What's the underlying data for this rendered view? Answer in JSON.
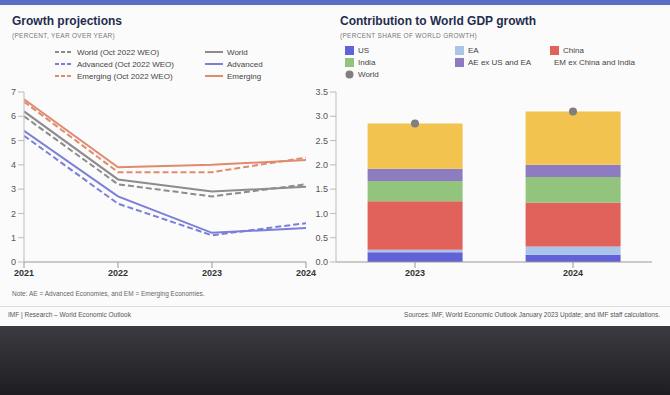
{
  "chart_data": [
    {
      "type": "line",
      "title": "Growth projections",
      "subtitle": "(PERCENT, YEAR OVER YEAR)",
      "x": [
        2021,
        2022,
        2023,
        2024
      ],
      "xlim": [
        2021,
        2024
      ],
      "xticks": [
        2021,
        2022,
        2023,
        2024
      ],
      "ylim": [
        0,
        7
      ],
      "yticks": [
        0,
        1,
        2,
        3,
        4,
        5,
        6,
        7
      ],
      "grid": false,
      "series": [
        {
          "name": "World (Oct 2022 WEO)",
          "color": "#8c8c8c",
          "line_style": "dashed",
          "values": [
            6.0,
            3.2,
            2.7,
            3.2
          ]
        },
        {
          "name": "Advanced (Oct 2022 WEO)",
          "color": "#7b7fd6",
          "line_style": "dashed",
          "values": [
            5.2,
            2.4,
            1.1,
            1.6
          ]
        },
        {
          "name": "Emerging (Oct 2022 WEO)",
          "color": "#e08a6e",
          "line_style": "dashed",
          "values": [
            6.6,
            3.7,
            3.7,
            4.3
          ]
        },
        {
          "name": "World",
          "color": "#8c8c8c",
          "line_style": "solid",
          "values": [
            6.2,
            3.4,
            2.9,
            3.1
          ]
        },
        {
          "name": "Advanced",
          "color": "#7b7fd6",
          "line_style": "solid",
          "values": [
            5.4,
            2.7,
            1.2,
            1.4
          ]
        },
        {
          "name": "Emerging",
          "color": "#e08a6e",
          "line_style": "solid",
          "values": [
            6.7,
            3.9,
            4.0,
            4.2
          ]
        }
      ],
      "note": "Note: AE = Advanced Economies, and EM = Emerging Economies.",
      "footer": "IMF | Research – World Economic Outlook"
    },
    {
      "type": "bar",
      "stacked": true,
      "title": "Contribution to World GDP growth",
      "subtitle": "(PERCENT SHARE OF WORLD GROWTH)",
      "categories": [
        "2023",
        "2024"
      ],
      "ylim": [
        0,
        3.5
      ],
      "yticks": [
        {
          "value": 0,
          "label": "0.0"
        },
        0.5,
        {
          "value": 1,
          "label": "1.0"
        },
        1.5,
        {
          "value": 2,
          "label": "2.0"
        },
        2.5,
        {
          "value": 3,
          "label": "3.0"
        },
        3.5
      ],
      "grid": false,
      "series": [
        {
          "name": "US",
          "color": "#6262d8",
          "values": [
            0.2,
            0.15
          ]
        },
        {
          "name": "EA",
          "color": "#a9c6ea",
          "values": [
            0.05,
            0.17
          ]
        },
        {
          "name": "China",
          "color": "#e0625a",
          "values": [
            1.0,
            0.9
          ]
        },
        {
          "name": "India",
          "color": "#93c47d",
          "values": [
            0.42,
            0.53
          ]
        },
        {
          "name": "AE ex US and EA",
          "color": "#8e7cc3",
          "values": [
            0.25,
            0.25
          ]
        },
        {
          "name": "EM ex China and India",
          "color": "#f2c44f",
          "values": [
            0.93,
            1.1
          ]
        },
        {
          "name": "World",
          "type": "scatter",
          "marker": "circle",
          "color": "#7f7f7f",
          "values": [
            2.85,
            3.1
          ]
        }
      ],
      "source": "Sources: IMF, World Economic Outlook January 2023 Update; and IMF staff calculations."
    }
  ]
}
